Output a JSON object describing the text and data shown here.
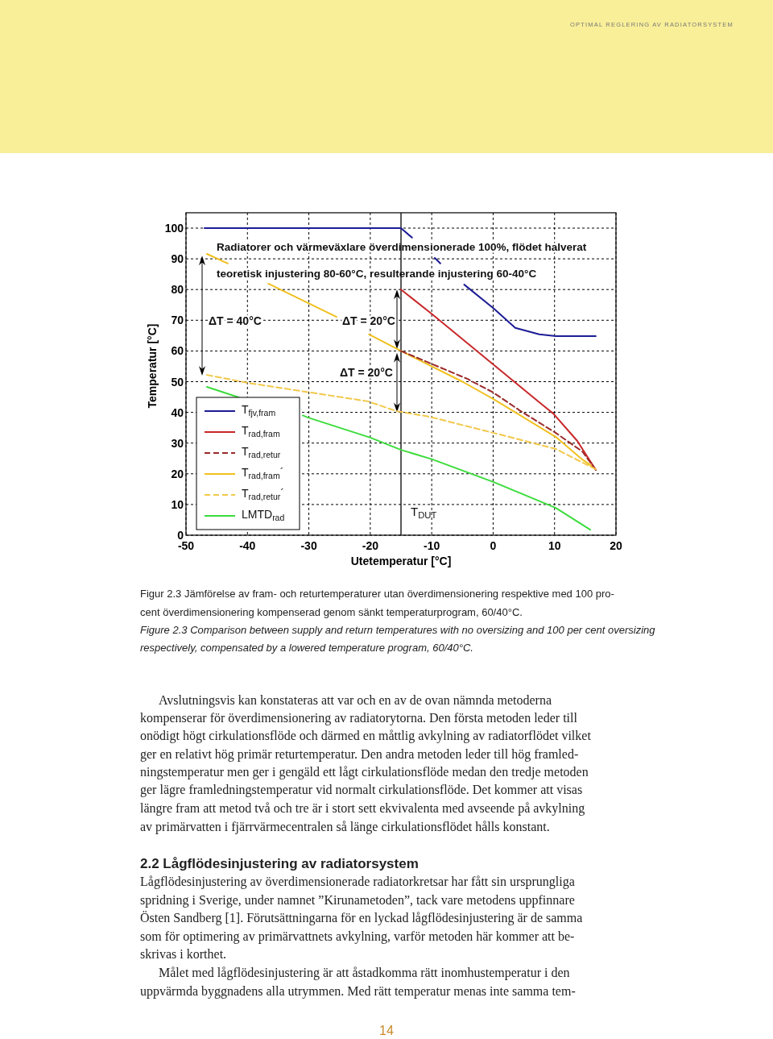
{
  "chart_data": {
    "type": "line",
    "xlabel": "Utetemperatur [°C]",
    "ylabel": "Temperatur [°C]",
    "xlim": [
      -50,
      20
    ],
    "xticks": [
      -50,
      -40,
      -30,
      -20,
      -10,
      0,
      10,
      20
    ],
    "ylim": [
      0,
      105
    ],
    "yticks": [
      0,
      10,
      20,
      30,
      40,
      50,
      60,
      70,
      80,
      90,
      100
    ],
    "grid": true,
    "legend": "bottom left",
    "series": [
      {
        "name": "T$_{fjv,fram}$",
        "color": "#1c1c96",
        "line_style": "solid",
        "x": [
          -47,
          -15,
          -13.2,
          -11.5,
          -9.5,
          -8.6,
          -6.5,
          -4.7,
          0.1,
          3.6,
          7.5,
          10.2,
          16.7
        ],
        "values": [
          100,
          100,
          96.9,
          null,
          90.3,
          88.5,
          null,
          81.6,
          73.8,
          67.5,
          65.4,
          64.8,
          64.8
        ]
      },
      {
        "name": "T$_{rad,fram}$",
        "color": "#c8282a",
        "line_style": "solid",
        "x": [
          -15,
          -9.9,
          7.5,
          9.8,
          13.7,
          16.7
        ],
        "values": [
          80,
          71.9,
          43.3,
          39.6,
          30.7,
          21.3
        ]
      },
      {
        "name": "T$_{rad,retur}$",
        "color": "#9b2a2a",
        "line_style": "dashed",
        "x": [
          -15,
          -4.3,
          0,
          4.5,
          10.2,
          14.5,
          16.7
        ],
        "values": [
          60,
          51,
          46.5,
          40.4,
          33.3,
          27.3,
          21.3
        ]
      },
      {
        "name": "T$_{rad,fram}$´",
        "color": "#f0c020",
        "line_style": "solid",
        "x": [
          -46.6,
          -43.2,
          -40,
          -36.6,
          -30,
          -25.5,
          -23,
          -20.2,
          -15,
          -5,
          0,
          10.2,
          14.5,
          16.4
        ],
        "values": [
          91.6,
          88.5,
          null,
          81.9,
          75.5,
          71.1,
          null,
          65.4,
          60,
          50,
          44.4,
          32,
          24.7,
          22
        ]
      },
      {
        "name": "T$_{rad,retur}$´",
        "color": "#f2c84a",
        "line_style": "dashed",
        "x": [
          -46.6,
          -39.9,
          -20.4,
          -15.7,
          -10.4,
          0.1,
          10.2,
          15.4,
          16.7
        ],
        "values": [
          52.2,
          49.6,
          43.6,
          40.4,
          38.6,
          33.3,
          28.1,
          22.8,
          21.5
        ]
      },
      {
        "name": "LMTD$_{rad}$",
        "color": "#3cdc3c",
        "line_style": "solid",
        "x": [
          -46.6,
          -41.4,
          -36,
          -31,
          -30.1,
          -20,
          -15,
          -9.9,
          0.1,
          10.2,
          15.8
        ],
        "values": [
          48.3,
          44.9,
          null,
          39,
          38.3,
          31.8,
          27.8,
          24.7,
          17.3,
          8.9,
          1.8
        ]
      }
    ],
    "ref_lines": [
      {
        "axis": "x",
        "value": -15,
        "label": "T$_{DUT}$",
        "color": "#000000",
        "line_style": "solid"
      }
    ],
    "annotations": [
      "Radiatorer och värmeväxlare överdimensionerade 100%, flödet halverat",
      "teoretisk injustering 80-60°C, resulterande injustering 60-40°C",
      "ΔT = 40°C",
      "ΔT = 20°C",
      "ΔT = 20°C",
      "OPTIMAL REGLERING AV RADIATORSYSTEM",
      "Figur 2.3 Jämförelse av fram- och returtemperaturer utan överdimensionering respektive med 100 pro-",
      "cent överdimensionering kompenserad genom sänkt temperaturprogram, 60/40°C.",
      "Figure 2.3 Comparison between supply and return temperatures with no oversizing and 100 per cent oversizing",
      "respectively, compensated by a lowered temperature program, 60/40°C.",
      "Avslutningsvis kan konstateras att var och en av de ovan nämnda metoderna",
      "kompenserar för överdimensionering av radiatorytorna. Den första metoden leder till",
      "onödigt högt cirkulationsflöde och därmed en måttlig avkylning av radiatorflödet vilket",
      "ger en relativt hög primär returtemperatur. Den andra metoden leder till hög framled-",
      "ningstemperatur men ger i gengäld ett lågt cirkulationsflöde medan den tredje metoden",
      "ger lägre framledningstemperatur vid normalt cirkulationsflöde. Det kommer att visas",
      "längre fram att metod två och tre är i stort sett ekvivalenta med avseende på avkylning",
      "av primärvatten i fjärrvärmecentralen så länge cirkulationsflödet hålls konstant.",
      "2.2 Lågflödesinjustering av radiatorsystem",
      "Lågflödesinjustering av överdimensionerade radiatorkretsar har fått sin ursprungliga",
      "spridning i Sverige, under namnet ”Kirunametoden”, tack vare metodens uppfinnare",
      "Östen Sandberg [1]. Förutsättningarna för en lyckad lågflödesinjustering är de samma",
      "som för optimering av primärvattnets avkylning, varför metoden här kommer att be-",
      "skrivas i korthet.",
      "Målet med lågflödesinjustering är att åstadkomma rätt inomhustemperatur i den",
      "uppvärmda byggnadens alla utrymmen. Med rätt temperatur menas inte samma tem-",
      "14"
    ]
  }
}
